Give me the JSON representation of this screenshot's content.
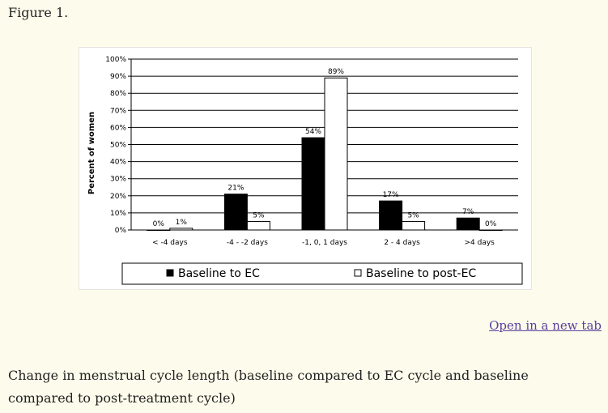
{
  "figure_title": "Figure 1.",
  "open_link": "Open in a new tab",
  "caption": "Change in menstrual cycle length (baseline compared to EC cycle and baseline compared to post-treatment cycle)",
  "chart_data": {
    "type": "bar",
    "ylabel": "Percent of women",
    "xlabel": "",
    "ylim": [
      0,
      100
    ],
    "yticks": [
      "0%",
      "10%",
      "20%",
      "30%",
      "40%",
      "50%",
      "60%",
      "70%",
      "80%",
      "90%",
      "100%"
    ],
    "grid": true,
    "legend_position": "bottom",
    "categories": [
      "< -4 days",
      "-4 - -2 days",
      "-1, 0, 1 days",
      "2 - 4 days",
      ">4 days"
    ],
    "series": [
      {
        "name": "Baseline to EC",
        "values": [
          0,
          21,
          54,
          17,
          7
        ],
        "labels": [
          "0%",
          "21%",
          "54%",
          "17%",
          "7%"
        ],
        "color": "#000000"
      },
      {
        "name": "Baseline to post-EC",
        "values": [
          1,
          5,
          89,
          5,
          0
        ],
        "labels": [
          "1%",
          "5%",
          "89%",
          "5%",
          "0%"
        ],
        "color": "#ffffff"
      }
    ]
  }
}
